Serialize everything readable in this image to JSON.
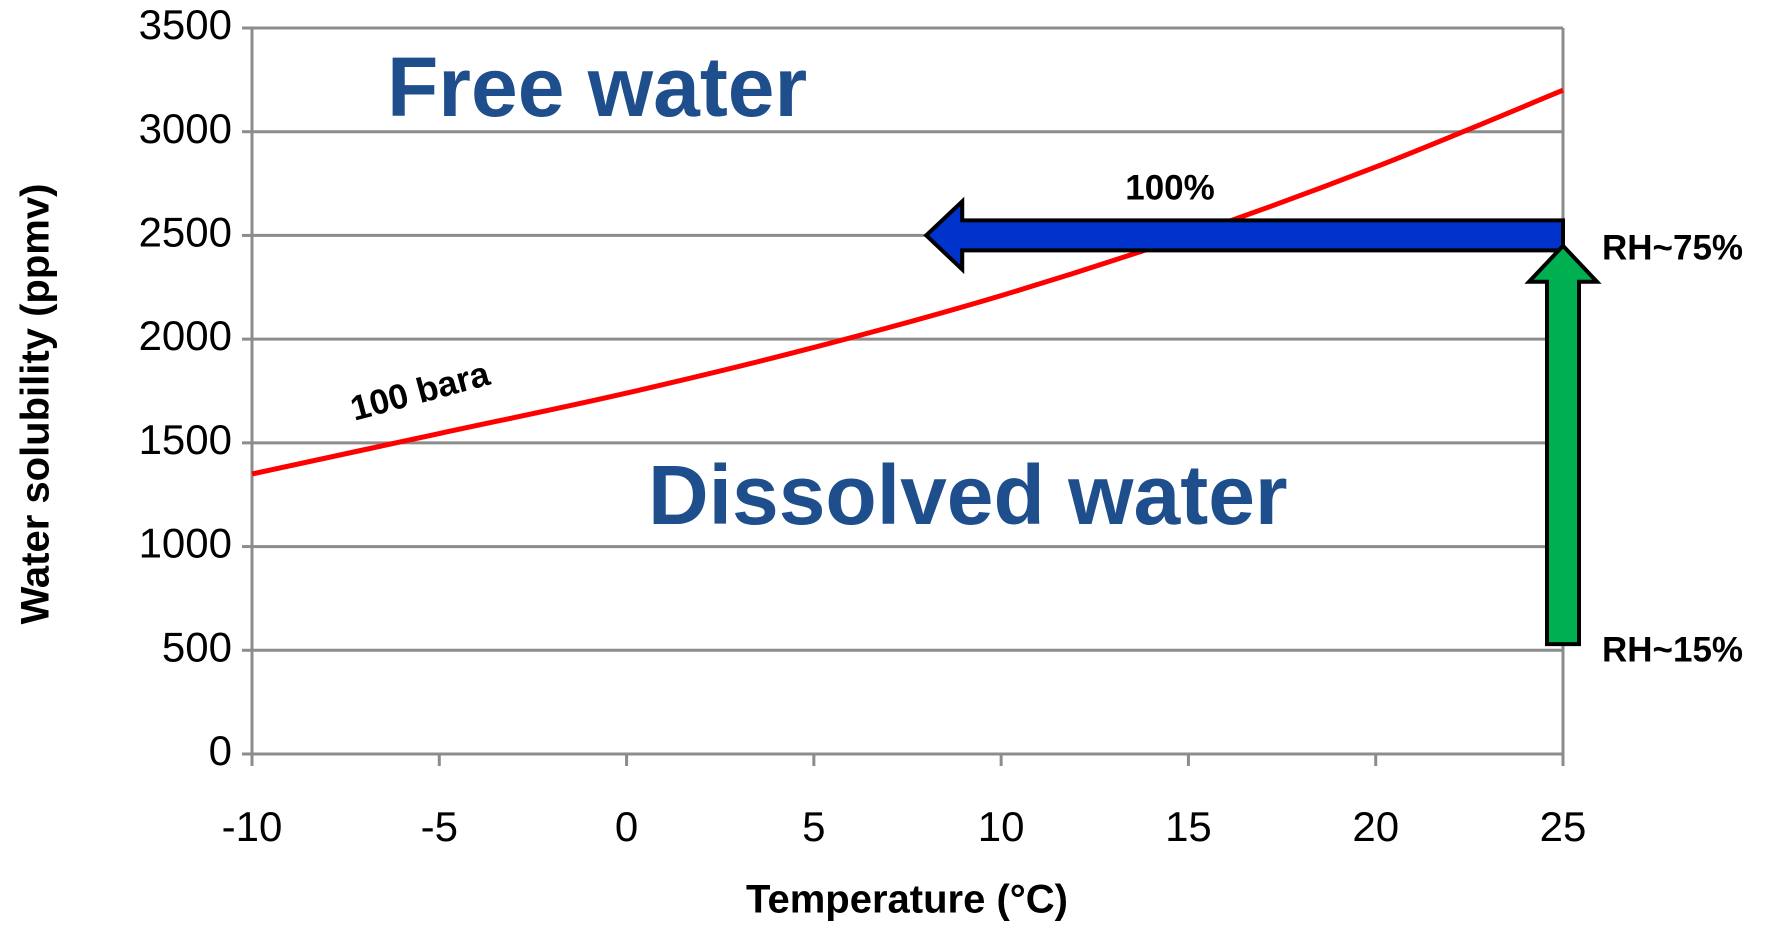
{
  "chart_data": {
    "type": "line",
    "x_label": "Temperature (°C)",
    "y_label": "Water solubility (ppmv)",
    "x": [
      -10,
      -5,
      0,
      5,
      10,
      15,
      20,
      25
    ],
    "series": [
      {
        "name": "100 bara",
        "color": "#ff0000",
        "values": [
          1350,
          1545,
          1740,
          1960,
          2210,
          2500,
          2830,
          3200
        ]
      }
    ],
    "xlim": [
      -10,
      25
    ],
    "xticks": [
      -10,
      -5,
      0,
      5,
      10,
      15,
      20,
      25
    ],
    "ylim": [
      0,
      3500
    ],
    "yticks": [
      0,
      500,
      1000,
      1500,
      2000,
      2500,
      3000,
      3500
    ],
    "grid": true,
    "annotations": [
      "Free water",
      "Dissolved water",
      "100%",
      "RH~75%",
      "RH~15%"
    ],
    "arrows": [
      {
        "x": [
          25,
          8
        ],
        "y": [
          2500,
          2500
        ],
        "color": "#0033cc"
      },
      {
        "x": [
          25,
          25
        ],
        "y": [
          530,
          2450
        ],
        "color": "#00b050"
      }
    ]
  }
}
